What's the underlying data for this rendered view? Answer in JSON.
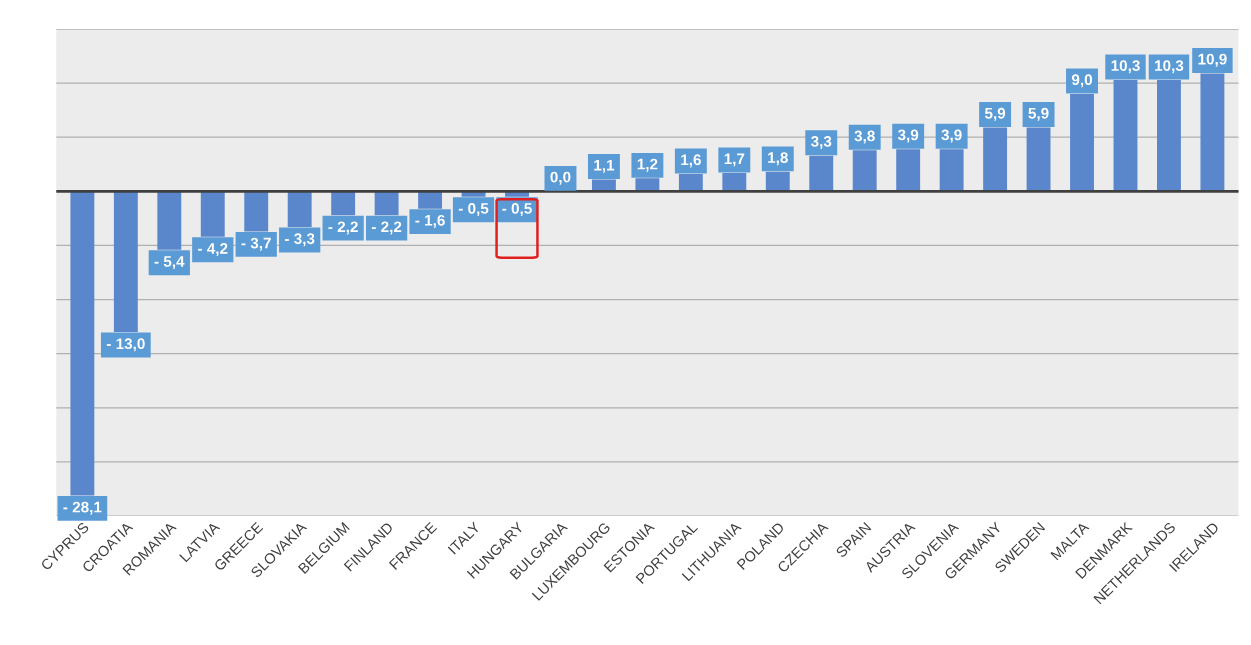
{
  "chart_data": {
    "type": "bar",
    "categories": [
      "CYPRUS",
      "CROATIA",
      "ROMANIA",
      "LATVIA",
      "GREECE",
      "SLOVAKIA",
      "BELGIUM",
      "FINLAND",
      "FRANCE",
      "ITALY",
      "HUNGARY",
      "BULGARIA",
      "LUXEMBOURG",
      "ESTONIA",
      "PORTUGAL",
      "LITHUANIA",
      "POLAND",
      "CZECHIA",
      "SPAIN",
      "AUSTRIA",
      "SLOVENIA",
      "GERMANY",
      "SWEDEN",
      "MALTA",
      "DENMARK",
      "NETHERLANDS",
      "IRELAND"
    ],
    "values": [
      -28.1,
      -13.0,
      -5.4,
      -4.2,
      -3.7,
      -3.3,
      -2.2,
      -2.2,
      -1.6,
      -0.5,
      -0.5,
      0.0,
      1.1,
      1.2,
      1.6,
      1.7,
      1.8,
      3.3,
      3.8,
      3.9,
      3.9,
      5.9,
      5.9,
      9.0,
      10.3,
      10.3,
      10.9
    ],
    "value_labels": [
      "- 28,1",
      "- 13,0",
      "- 5,4",
      "- 4,2",
      "- 3,7",
      "- 3,3",
      "- 2,2",
      "- 2,2",
      "- 1,6",
      "- 0,5",
      "- 0,5",
      "0,0",
      "1,1",
      "1,2",
      "1,6",
      "1,7",
      "1,8",
      "3,3",
      "3,8",
      "3,9",
      "3,9",
      "5,9",
      "5,9",
      "9,0",
      "10,3",
      "10,3",
      "10,9"
    ],
    "color": "#5a87cc",
    "ylim": [
      -30,
      15
    ],
    "yticks": [
      {
        "value": -30,
        "label": null
      },
      {
        "value": -25,
        "label": null
      },
      {
        "value": -20,
        "label": null
      },
      {
        "value": -15,
        "label": null
      },
      {
        "value": -10,
        "label": null
      },
      {
        "value": -5,
        "label": null
      },
      {
        "value": 0,
        "label": null
      },
      {
        "value": 5,
        "label": null
      },
      {
        "value": 10,
        "label": null
      },
      {
        "value": 15,
        "label": null
      }
    ],
    "ref_lines": [
      {
        "axis": "y",
        "value": 0,
        "label": null,
        "color": "#404040"
      }
    ],
    "grid": "y",
    "tick_labels": "x",
    "legend": false
  }
}
